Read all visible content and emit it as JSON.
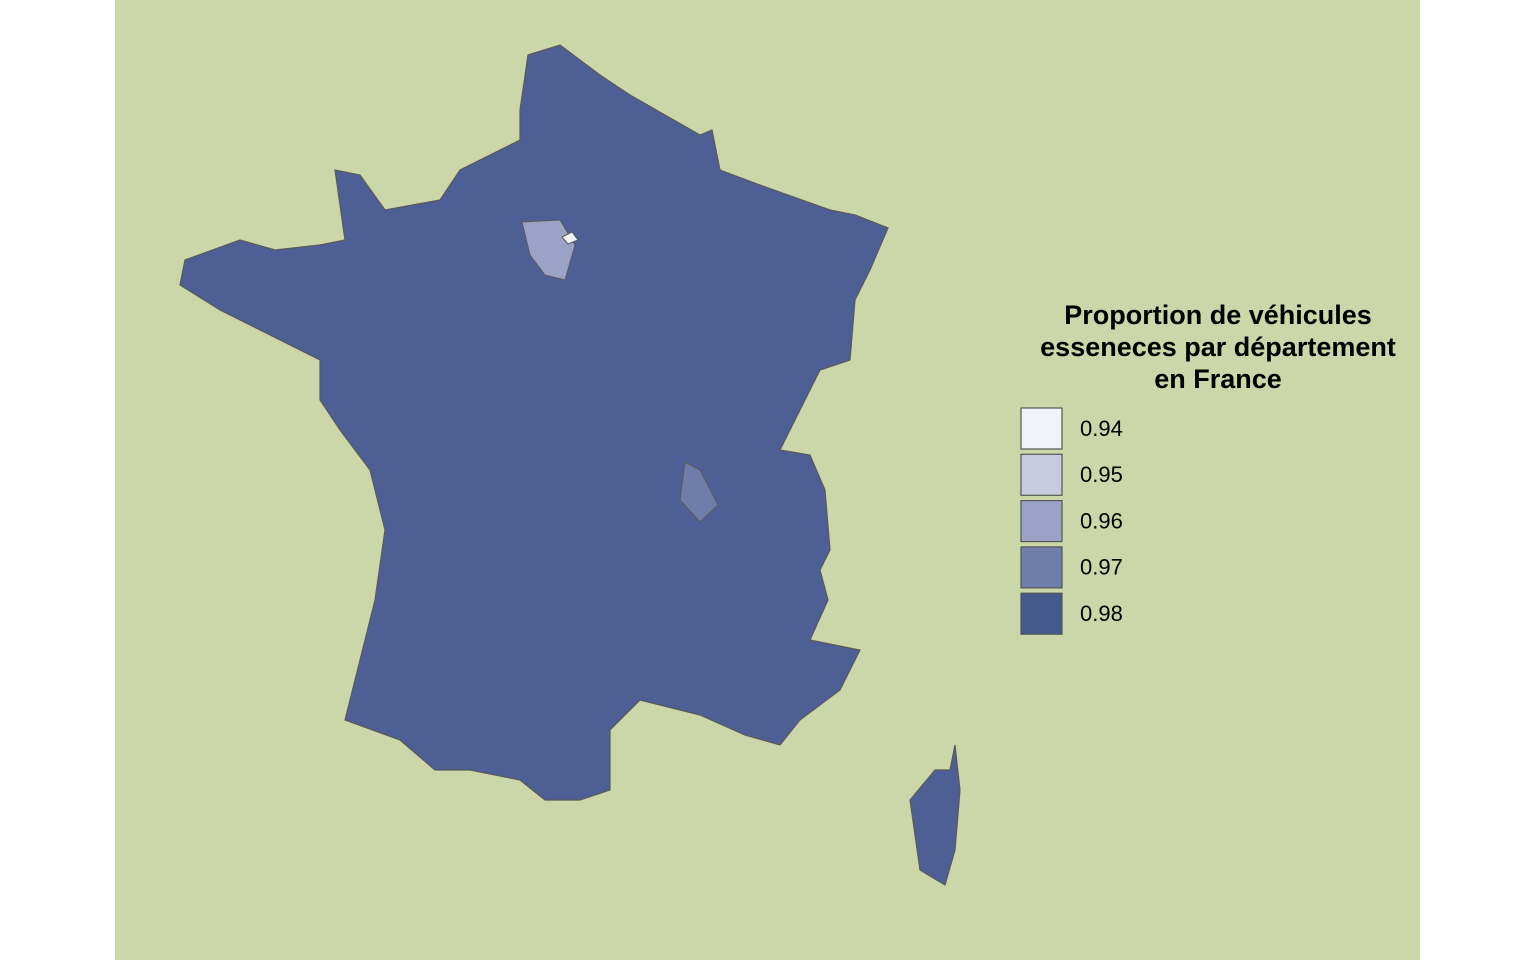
{
  "map": {
    "legend": {
      "title_lines": [
        "Proportion de véhicules",
        "esseneces par département",
        "en France"
      ],
      "items": [
        {
          "value": 0.94,
          "color": "#f2f3f9"
        },
        {
          "value": 0.95,
          "color": "#c8cbe0"
        },
        {
          "value": 0.96,
          "color": "#9aa3c6"
        },
        {
          "value": 0.97,
          "color": "#6f7daa"
        },
        {
          "value": 0.98,
          "color": "#45598f"
        }
      ]
    }
  }
}
